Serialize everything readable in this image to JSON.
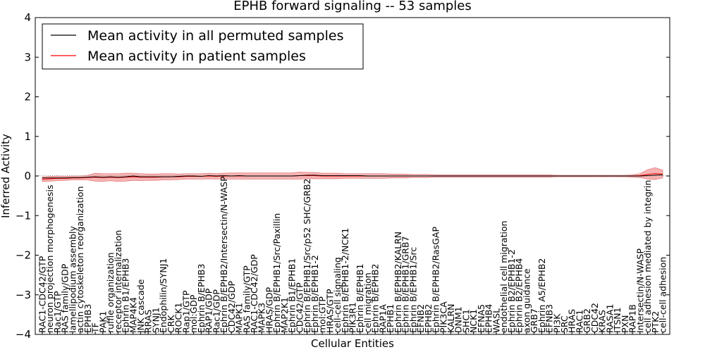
{
  "chart_data": {
    "type": "line",
    "title": "EPHB forward signaling -- 53 samples",
    "xlabel": "Cellular Entities",
    "ylabel": "Inferred Activity",
    "ylim": [
      -4,
      4
    ],
    "yticks": [
      "−4",
      "−3",
      "−2",
      "−1",
      "0",
      "1",
      "2",
      "3",
      "4"
    ],
    "grid": false,
    "legend_position": "top-left",
    "colors": {
      "permuted": "#000000",
      "patient": "#ff0000",
      "band": "#f08080",
      "zero_line": "#999999"
    },
    "categories": [
      "RAC1-CDC42/GTP",
      "neuron projection morphogenesis",
      "Rac1/GTP",
      "RAS family/GDP",
      "lamellipodium assembly",
      "actin cytoskeleton reorganization",
      "EPHB3",
      "TF",
      "PAK1",
      "ruffle organization",
      "receptor internalization",
      "Ephrin B1/EPHB3",
      "MAP4K4",
      "JNK cascade",
      "RRAS",
      "SYNJ1",
      "Endophilin/SYNJ1",
      "CRK",
      "ROCK1",
      "Rap1/GTP",
      "mol:GDP",
      "Ephrin B/EPHB3",
      "RAP1/GDP",
      "Rac1/GDP",
      "Ephrin B/EPHB2/Intersectin/N-WASP",
      "CDC42/GDP",
      "MAPK1",
      "RAS family/GTP",
      "RAC1-CDC42/GDP",
      "MAPK3",
      "HRAS/GDP",
      "Ephrin B/EPHB1/Src/Paxillin",
      "MAP2K1",
      "Ephrin B1/EPHB1",
      "CDC42/GTP",
      "Ephrin B/EPHB1/Src/p52 SHC/GRB2",
      "Ephrin B/EPHB1-2",
      "mol:GTP",
      "HRAS/GTP",
      "cell-cell signaling",
      "Ephrin B/EPHB1-2/NCK1",
      "PIK3R1",
      "Ephrin B/EPHB1",
      "cell migration",
      "Ephrin B/EPHB2",
      "RAP1A",
      "EPHB1",
      "Ephrin B/EPHB2/KALRN",
      "Ephrin B/EPHB1/GRB7",
      "Ephrin B/EPHB1/Src",
      "EFNB2",
      "EPHB2",
      "Ephrin B/EPHB2/RasGAP",
      "PIK3CA",
      "KALRN",
      "DNM1",
      "SHC1",
      "NCK1",
      "EFNA5",
      "EPHB4",
      "WASL",
      "endothelial cell migration",
      "Ephrin B2/EPHB1-2",
      "Ephrin B2/EPHB4",
      "axon guidance",
      "GRB7",
      "Ephrin A5/EPHB2",
      "EFNB3",
      "PI3K",
      "SRC",
      "HRAS",
      "RAC1",
      "GRB2",
      "CDC42",
      "KRAS",
      "RASA1",
      "ITSN1",
      "PXN",
      "RAP1B",
      "Intersectin/N-WASP",
      "cell adhesion mediated by integrin",
      "PTK2",
      "cell-cell adhesion"
    ],
    "series": [
      {
        "name": "Mean activity in all permuted samples",
        "values": [
          -0.05,
          -0.05,
          -0.05,
          -0.05,
          -0.04,
          -0.04,
          -0.03,
          -0.02,
          -0.03,
          -0.02,
          -0.03,
          -0.02,
          0.0,
          -0.02,
          -0.02,
          -0.02,
          -0.02,
          -0.02,
          -0.01,
          0.0,
          0.0,
          -0.01,
          0.01,
          0.0,
          0.01,
          0.0,
          0.01,
          0.0,
          0.0,
          0.0,
          0.0,
          0.0,
          0.0,
          0.0,
          0.01,
          0.02,
          0.02,
          0.01,
          0.01,
          0.01,
          0.01,
          0.01,
          0.01,
          0.0,
          0.0,
          0.0,
          0.0,
          0.0,
          0.0,
          0.0,
          0.0,
          0.0,
          0.0,
          0.0,
          0.0,
          0.0,
          0.0,
          0.0,
          0.0,
          0.0,
          0.0,
          0.0,
          0.0,
          0.0,
          0.0,
          0.0,
          0.0,
          0.0,
          0.0,
          0.0,
          0.0,
          0.0,
          0.0,
          0.0,
          0.0,
          0.0,
          0.0,
          0.0,
          0.0,
          0.0,
          0.01,
          0.02,
          0.03
        ]
      },
      {
        "name": "Mean activity in patient samples",
        "values": [
          -0.08,
          -0.07,
          -0.06,
          -0.06,
          -0.05,
          -0.05,
          -0.04,
          -0.03,
          -0.04,
          -0.03,
          -0.04,
          -0.03,
          -0.02,
          -0.03,
          -0.03,
          -0.03,
          -0.02,
          -0.02,
          -0.02,
          -0.01,
          -0.01,
          -0.01,
          0.0,
          -0.01,
          0.0,
          0.0,
          0.0,
          0.0,
          0.0,
          0.0,
          0.0,
          0.0,
          0.0,
          0.0,
          0.01,
          0.01,
          0.01,
          0.0,
          0.0,
          0.0,
          0.0,
          0.0,
          0.0,
          0.0,
          0.0,
          0.0,
          0.0,
          0.0,
          0.0,
          0.0,
          0.0,
          0.0,
          0.0,
          0.0,
          0.0,
          0.0,
          0.0,
          0.0,
          0.0,
          0.0,
          0.0,
          0.0,
          0.0,
          0.0,
          0.0,
          0.0,
          0.0,
          0.0,
          0.0,
          0.0,
          0.0,
          0.0,
          0.0,
          0.0,
          0.0,
          0.0,
          0.0,
          0.0,
          0.0,
          0.01,
          0.04,
          0.06,
          0.05
        ]
      }
    ],
    "band_halfwidth": [
      0.06,
      0.06,
      0.06,
      0.05,
      0.05,
      0.05,
      0.06,
      0.1,
      0.1,
      0.09,
      0.1,
      0.1,
      0.09,
      0.09,
      0.08,
      0.08,
      0.08,
      0.08,
      0.07,
      0.07,
      0.07,
      0.07,
      0.07,
      0.07,
      0.07,
      0.08,
      0.08,
      0.08,
      0.08,
      0.08,
      0.08,
      0.08,
      0.08,
      0.08,
      0.09,
      0.08,
      0.08,
      0.07,
      0.07,
      0.07,
      0.06,
      0.06,
      0.06,
      0.06,
      0.06,
      0.06,
      0.05,
      0.05,
      0.05,
      0.04,
      0.04,
      0.04,
      0.03,
      0.03,
      0.03,
      0.03,
      0.03,
      0.03,
      0.03,
      0.03,
      0.03,
      0.03,
      0.03,
      0.03,
      0.03,
      0.03,
      0.03,
      0.03,
      0.02,
      0.02,
      0.02,
      0.02,
      0.02,
      0.02,
      0.02,
      0.02,
      0.02,
      0.02,
      0.03,
      0.05,
      0.12,
      0.15,
      0.1
    ]
  }
}
